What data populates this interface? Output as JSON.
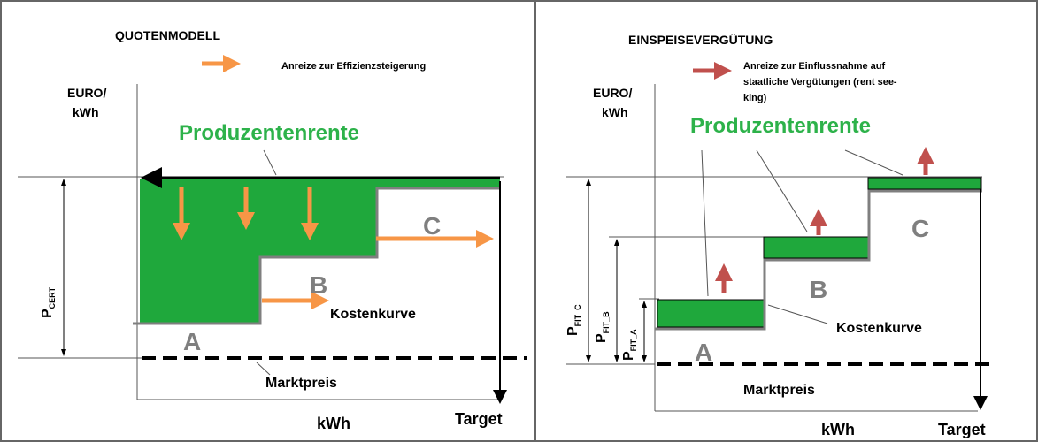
{
  "left": {
    "title": "QUOTENMODELL",
    "legend": "Anreize zur Effizienzsteigerung",
    "y_axis": [
      "EURO/",
      "kWh"
    ],
    "surplus": "Produzentenrente",
    "price_label": {
      "main": "P",
      "sub": "CERT"
    },
    "segments": [
      "A",
      "B",
      "C"
    ],
    "cost_curve": "Kostenkurve",
    "market_price": "Marktpreis",
    "x_axis": "kWh",
    "target": "Target"
  },
  "right": {
    "title": "EINSPEISEVERGÜTUNG",
    "legend": [
      "Anreize zur Einflussnahme auf",
      "staatliche Vergütungen (rent see-",
      "king)"
    ],
    "y_axis": [
      "EURO/",
      "kWh"
    ],
    "surplus": "Produzentenrente",
    "price_labels": [
      {
        "main": "P",
        "sub": "FIT_C"
      },
      {
        "main": "P",
        "sub": "FIT_B"
      },
      {
        "main": "P",
        "sub": "FIT_A"
      }
    ],
    "segments": [
      "A",
      "B",
      "C"
    ],
    "cost_curve": "Kostenkurve",
    "market_price": "Marktpreis",
    "x_axis": "kWh",
    "target": "Target"
  }
}
